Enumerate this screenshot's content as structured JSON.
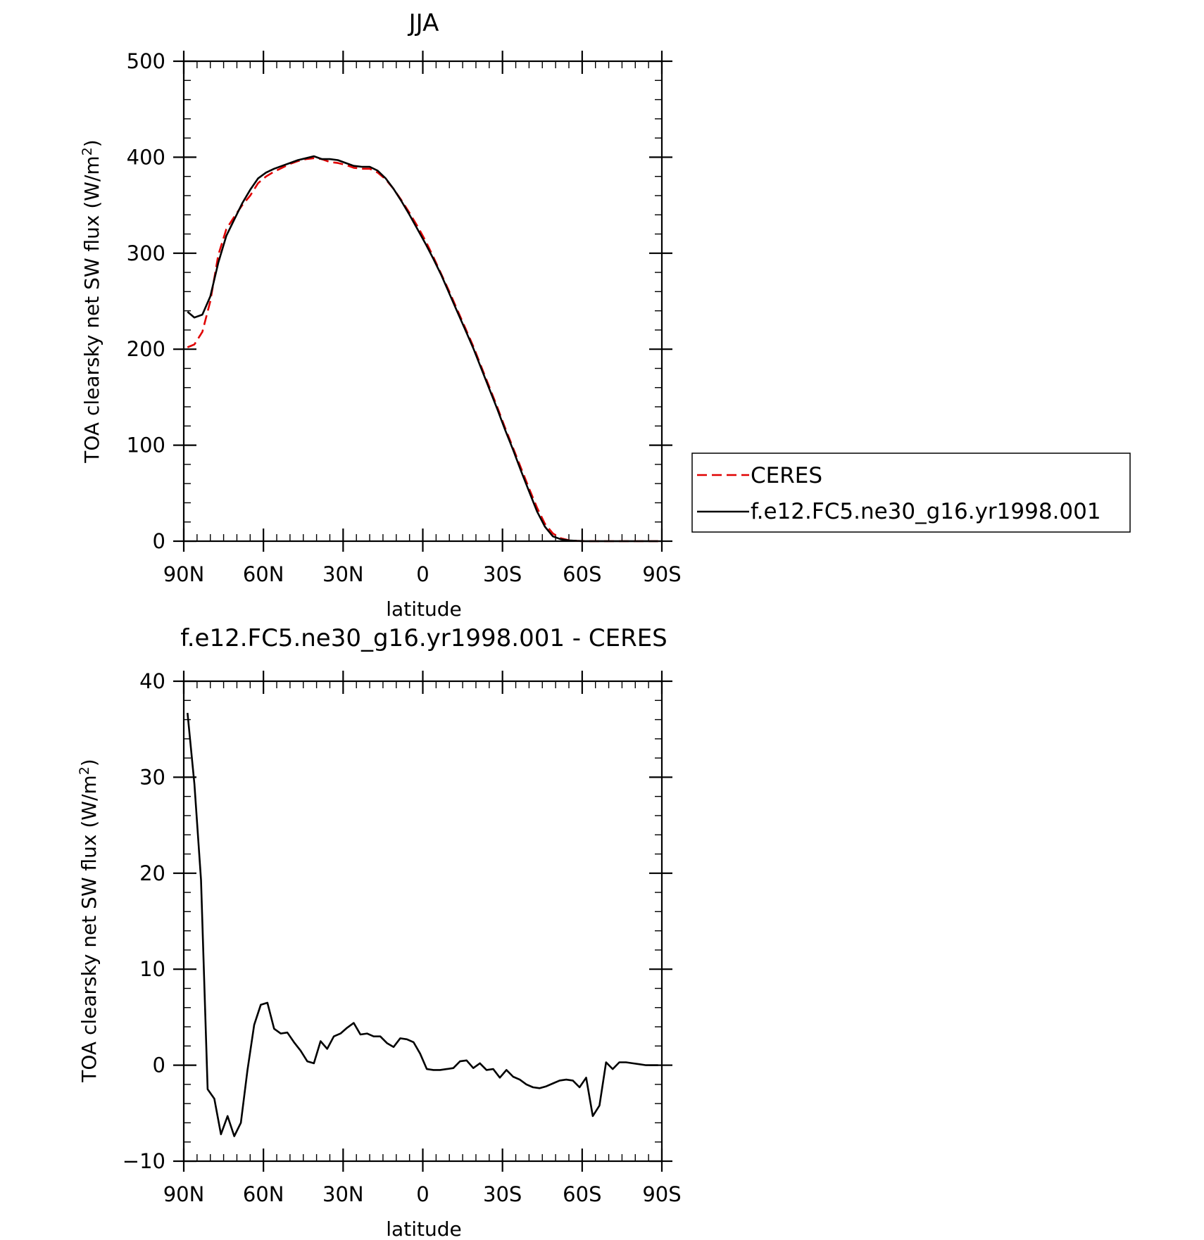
{
  "chart_data": [
    {
      "type": "line",
      "title": "JJA",
      "xlabel": "latitude",
      "ylabel": "TOA clearsky net SW flux (W/m",
      "ylabel_superscript": "2",
      "ylabel_suffix": ")",
      "xlim": [
        90,
        -90
      ],
      "ylim": [
        0,
        500
      ],
      "x_ticks": [
        90,
        60,
        30,
        0,
        -30,
        -60,
        -90
      ],
      "x_tick_labels": [
        "90N",
        "60N",
        "30N",
        "0",
        "30S",
        "60S",
        "90S"
      ],
      "y_ticks": [
        0,
        100,
        200,
        300,
        400,
        500
      ],
      "y_tick_labels": [
        "0",
        "100",
        "200",
        "300",
        "400",
        "500"
      ],
      "legend": {
        "placement": "right"
      },
      "series": [
        {
          "name": "CERES",
          "color": "#e00000",
          "dash": "dashed",
          "x": [
            88.6,
            86,
            83,
            80,
            77,
            74,
            71,
            68,
            65,
            62,
            59,
            56,
            53,
            50,
            47,
            44,
            41,
            38,
            35,
            32,
            29,
            26,
            23,
            20,
            17,
            14,
            11,
            8,
            5,
            2,
            -1,
            -4,
            -7,
            -10,
            -13,
            -16,
            -19,
            -22,
            -25,
            -28,
            -31,
            -34,
            -37,
            -40,
            -43,
            -46,
            -49,
            -52,
            -55,
            -58,
            -61,
            -64,
            -67,
            -70,
            -73,
            -76,
            -79,
            -82,
            -85,
            -88.6
          ],
          "y": [
            202,
            205,
            218,
            250,
            298,
            325,
            338,
            350,
            360,
            373,
            380,
            385,
            389,
            393,
            396,
            398,
            399,
            398,
            395,
            394,
            392,
            389,
            388,
            388,
            384,
            377,
            367,
            355,
            342,
            328,
            313,
            296,
            278,
            260,
            241,
            222,
            203,
            182,
            161,
            140,
            118,
            97,
            76,
            55,
            35,
            18,
            8,
            3,
            1,
            0.3,
            0,
            0,
            0,
            0,
            0,
            0,
            0,
            0,
            0,
            0
          ]
        },
        {
          "name": "f.e12.FC5.ne30_g16.yr1998.001",
          "color": "#000000",
          "dash": "solid",
          "x": [
            88.6,
            86,
            83,
            80,
            77,
            74,
            71,
            68,
            65,
            62,
            59,
            56,
            53,
            50,
            47,
            44,
            41,
            38,
            35,
            32,
            29,
            26,
            23,
            20,
            17,
            14,
            11,
            8,
            5,
            2,
            -1,
            -4,
            -7,
            -10,
            -13,
            -16,
            -19,
            -22,
            -25,
            -28,
            -31,
            -34,
            -37,
            -40,
            -43,
            -46,
            -49,
            -52,
            -55,
            -58,
            -61,
            -64,
            -67,
            -70,
            -73,
            -76,
            -79,
            -82,
            -85,
            -88.6
          ],
          "y": [
            239,
            233,
            236,
            255,
            290,
            318,
            335,
            352,
            366,
            378,
            384,
            388,
            391,
            394,
            397,
            399,
            401,
            398,
            398,
            397,
            394,
            391,
            390,
            390,
            386,
            378,
            367,
            354,
            340,
            325,
            310,
            294,
            277,
            258,
            239,
            220,
            201,
            180,
            159,
            138,
            116,
            95,
            73,
            52,
            31,
            15,
            5,
            2,
            0.8,
            0.3,
            0,
            0,
            0,
            0,
            0,
            0,
            0,
            0,
            0,
            0
          ]
        }
      ]
    },
    {
      "type": "line",
      "title": "f.e12.FC5.ne30_g16.yr1998.001 - CERES",
      "xlabel": "latitude",
      "ylabel": "TOA clearsky net SW flux (W/m",
      "ylabel_superscript": "2",
      "ylabel_suffix": ")",
      "xlim": [
        90,
        -90
      ],
      "ylim": [
        -10,
        40
      ],
      "x_ticks": [
        90,
        60,
        30,
        0,
        -30,
        -60,
        -90
      ],
      "x_tick_labels": [
        "90N",
        "60N",
        "30N",
        "0",
        "30S",
        "60S",
        "90S"
      ],
      "y_ticks": [
        -10,
        0,
        10,
        20,
        30,
        40
      ],
      "y_tick_labels": [
        "−10",
        "0",
        "10",
        "20",
        "30",
        "40"
      ],
      "series": [
        {
          "color": "#000000",
          "dash": "solid",
          "x": [
            88.6,
            86,
            83.5,
            81,
            78.5,
            76,
            73.5,
            71,
            68.5,
            66,
            63.5,
            61,
            58.5,
            56,
            53.5,
            51,
            48.5,
            46,
            43.5,
            41,
            38.5,
            36,
            33.5,
            31,
            28.5,
            26,
            23.5,
            21,
            18.5,
            16,
            13.5,
            11,
            8.5,
            6,
            3.5,
            1,
            -1.5,
            -4,
            -6.5,
            -9,
            -11.5,
            -14,
            -16.5,
            -19,
            -21.5,
            -24,
            -26.5,
            -29,
            -31.5,
            -34,
            -36.5,
            -39,
            -41.5,
            -44,
            -46.5,
            -49,
            -51.5,
            -54,
            -56.5,
            -59,
            -61.5,
            -64,
            -66.5,
            -69,
            -71.5,
            -74,
            -76.5,
            -79,
            -81.5,
            -84,
            -86.5,
            -88.6
          ],
          "y": [
            36.7,
            29.3,
            19.3,
            -2.5,
            -3.5,
            -7.2,
            -5.3,
            -7.4,
            -6.0,
            -0.5,
            4.2,
            6.3,
            6.5,
            3.8,
            3.3,
            3.4,
            2.4,
            1.5,
            0.4,
            0.2,
            2.5,
            1.7,
            3.0,
            3.3,
            3.9,
            4.4,
            3.2,
            3.3,
            3.0,
            3.0,
            2.3,
            1.9,
            2.8,
            2.7,
            2.4,
            1.2,
            -0.4,
            -0.5,
            -0.5,
            -0.4,
            -0.3,
            0.4,
            0.5,
            -0.3,
            0.2,
            -0.5,
            -0.4,
            -1.3,
            -0.5,
            -1.2,
            -1.5,
            -2.0,
            -2.3,
            -2.4,
            -2.2,
            -1.9,
            -1.6,
            -1.5,
            -1.6,
            -2.3,
            -1.3,
            -5.3,
            -4.2,
            0.3,
            -0.4,
            0.3,
            0.3,
            0.2,
            0.1,
            0,
            0,
            0
          ]
        }
      ]
    }
  ]
}
